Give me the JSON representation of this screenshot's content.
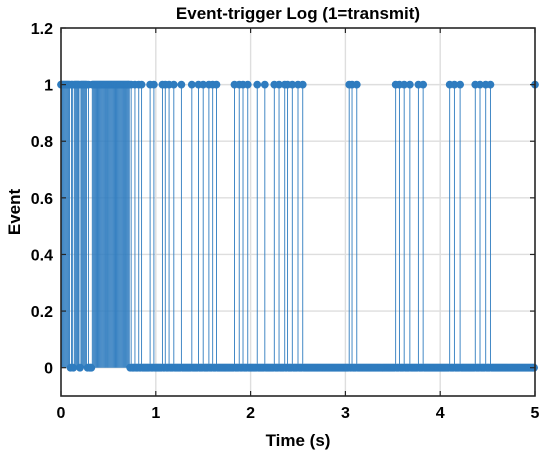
{
  "chart_data": {
    "type": "stem",
    "title": "Event-trigger Log (1=transmit)",
    "xlabel": "Time (s)",
    "ylabel": "Event",
    "xlim": [
      0,
      5
    ],
    "ylim": [
      -0.1,
      1.2
    ],
    "xticks": [
      "0",
      "1",
      "2",
      "3",
      "4",
      "5"
    ],
    "yticks": [
      "0",
      "0.2",
      "0.4",
      "0.6",
      "0.8",
      "1",
      "1.2"
    ],
    "grid": true,
    "box": true,
    "sample_period": 0.01,
    "color": "#2f7cbf",
    "series": [
      {
        "name": "",
        "event_times": [
          0.0,
          0.01,
          0.02,
          0.03,
          0.04,
          0.05,
          0.06,
          0.07,
          0.08,
          0.09,
          0.11,
          0.12,
          0.14,
          0.15,
          0.16,
          0.17,
          0.18,
          0.19,
          0.21,
          0.22,
          0.23,
          0.24,
          0.25,
          0.26,
          0.27,
          0.29,
          0.33,
          0.34,
          0.35,
          0.36,
          0.37,
          0.38,
          0.39,
          0.4,
          0.41,
          0.42,
          0.43,
          0.44,
          0.45,
          0.46,
          0.47,
          0.48,
          0.49,
          0.5,
          0.51,
          0.52,
          0.53,
          0.54,
          0.55,
          0.56,
          0.57,
          0.58,
          0.59,
          0.6,
          0.61,
          0.62,
          0.63,
          0.64,
          0.65,
          0.66,
          0.67,
          0.68,
          0.69,
          0.7,
          0.71,
          0.72,
          0.74,
          0.78,
          0.82,
          0.85,
          0.94,
          0.98,
          1.07,
          1.1,
          1.14,
          1.19,
          1.27,
          1.38,
          1.45,
          1.5,
          1.56,
          1.6,
          1.64,
          1.83,
          1.88,
          1.92,
          1.97,
          2.07,
          2.15,
          2.25,
          2.3,
          2.36,
          2.39,
          2.44,
          2.5,
          2.55,
          3.04,
          3.07,
          3.12,
          3.53,
          3.57,
          3.62,
          3.68,
          3.77,
          3.82,
          4.1,
          4.15,
          4.21,
          4.37,
          4.42,
          4.48,
          4.53,
          5.0
        ]
      }
    ]
  }
}
